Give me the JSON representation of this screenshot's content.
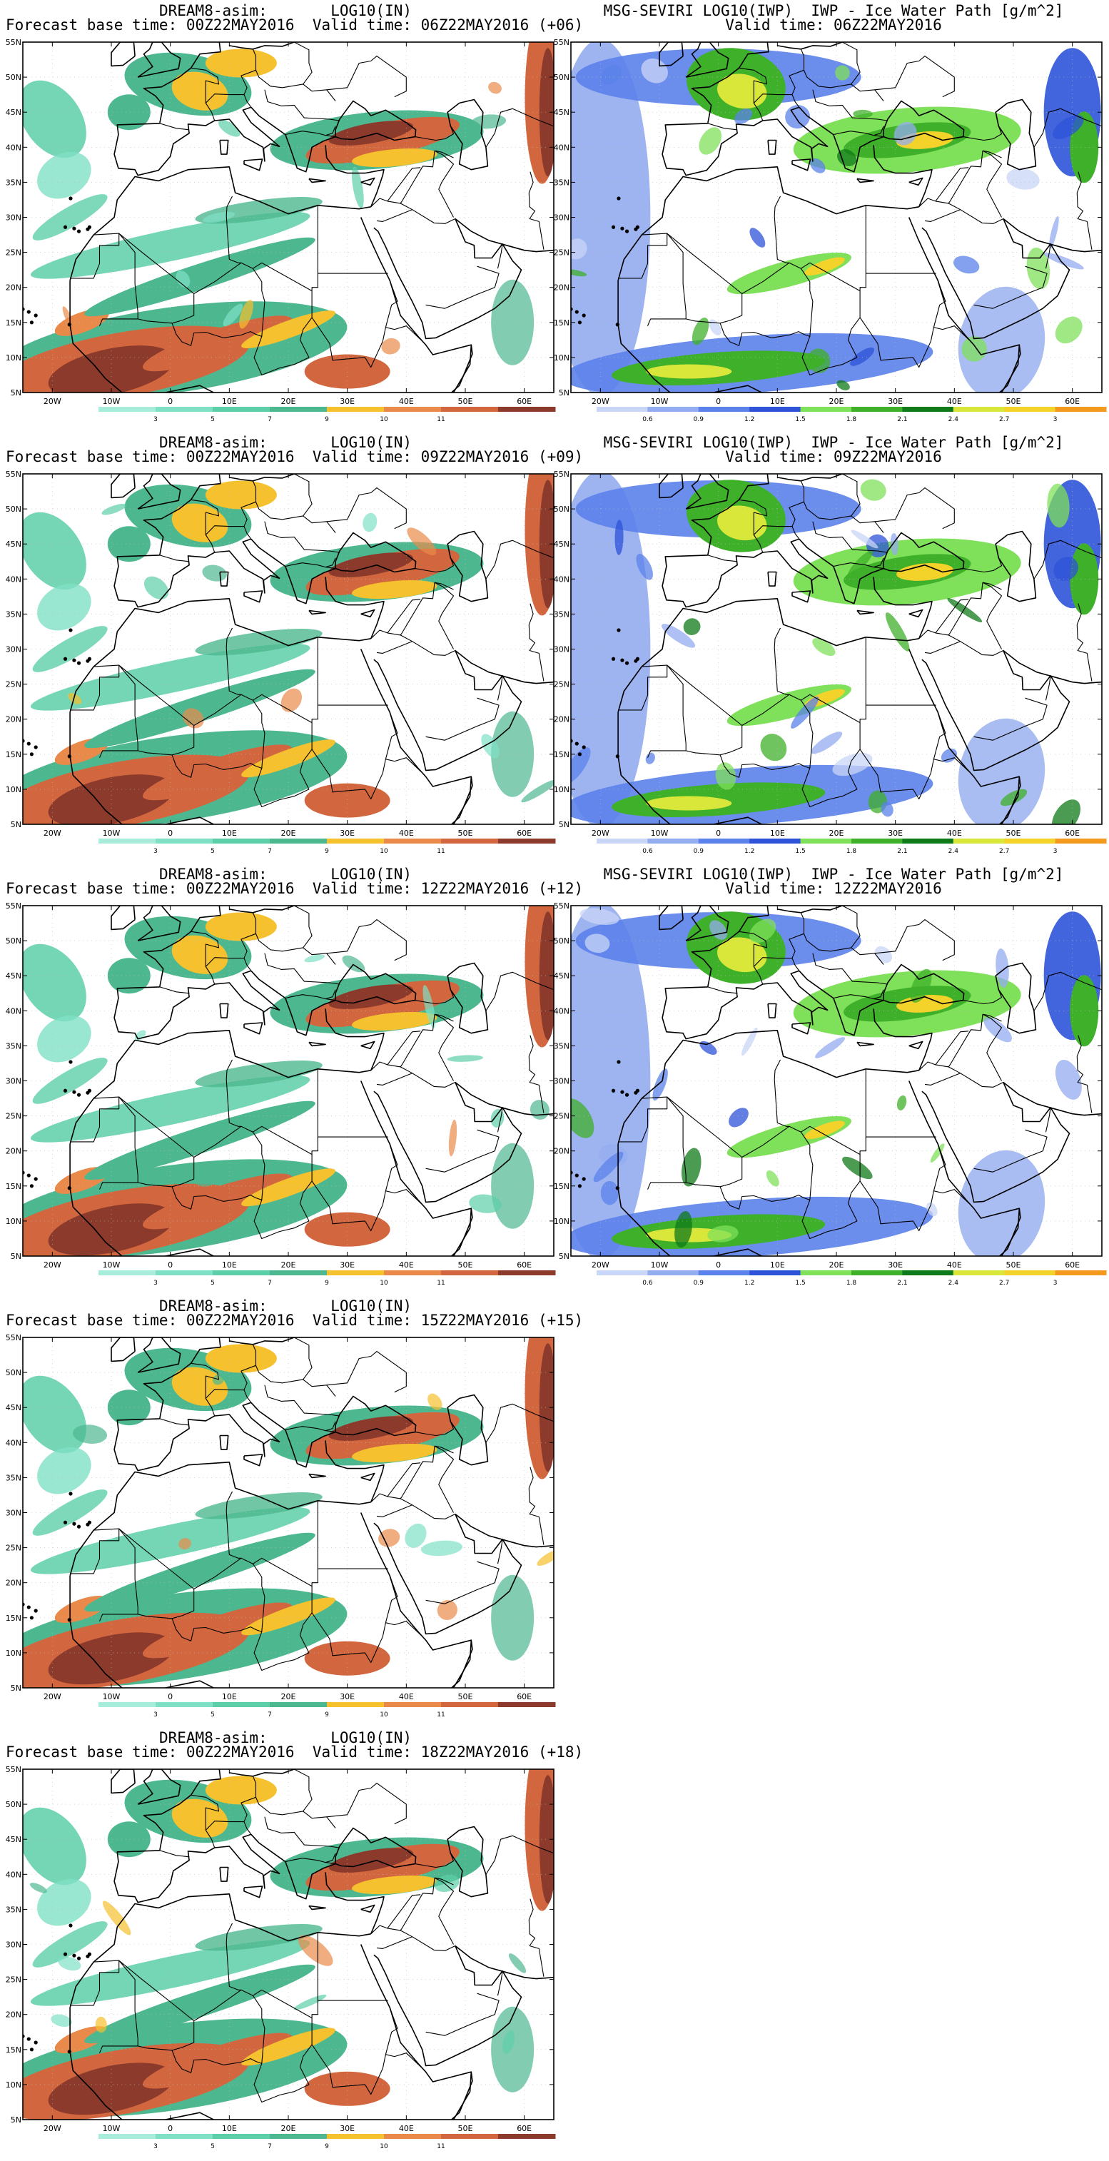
{
  "map_axes": {
    "lat_labels": [
      "55N",
      "50N",
      "45N",
      "40N",
      "35N",
      "30N",
      "25N",
      "20N",
      "15N",
      "10N",
      "5N"
    ],
    "lon_labels": [
      "20W",
      "10W",
      "0",
      "10E",
      "20E",
      "30E",
      "40E",
      "50E",
      "60E"
    ]
  },
  "dream_colorbar": {
    "labels": [
      "3",
      "5",
      "7",
      "9",
      "10",
      "11"
    ],
    "colors": [
      "#a8ecdc",
      "#7fe0c6",
      "#5ccfa8",
      "#4db890",
      "#f5c12e",
      "#e98a4a",
      "#d2673f",
      "#8b3a2c"
    ]
  },
  "msg_colorbar": {
    "labels": [
      "0.6",
      "0.9",
      "1.2",
      "1.5",
      "1.8",
      "2.1",
      "2.4",
      "2.7",
      "3"
    ],
    "colors": [
      "#c9d6f7",
      "#94acf0",
      "#5b81ea",
      "#2e53d8",
      "#7fe05a",
      "#3fb02a",
      "#0f7a1a",
      "#d9e63a",
      "#f3d22a",
      "#f39a1e"
    ]
  },
  "panels": [
    {
      "id": "dream-06",
      "model": "DREAM8-asim:",
      "var": "LOG10(IN)",
      "line2": "Forecast base time: 00Z22MAY2016  Valid time: 06Z22MAY2016 (+06)",
      "kind": "dream"
    },
    {
      "id": "msg-06",
      "model": "MSG-SEVIRI LOG10(IWP)",
      "var": "IWP - Ice Water Path [g/m^2]",
      "line2": "Valid time: 06Z22MAY2016",
      "kind": "msg"
    },
    {
      "id": "dream-09",
      "model": "DREAM8-asim:",
      "var": "LOG10(IN)",
      "line2": "Forecast base time: 00Z22MAY2016  Valid time: 09Z22MAY2016 (+09)",
      "kind": "dream"
    },
    {
      "id": "msg-09",
      "model": "MSG-SEVIRI LOG10(IWP)",
      "var": "IWP - Ice Water Path [g/m^2]",
      "line2": "Valid time: 09Z22MAY2016",
      "kind": "msg"
    },
    {
      "id": "dream-12",
      "model": "DREAM8-asim:",
      "var": "LOG10(IN)",
      "line2": "Forecast base time: 00Z22MAY2016  Valid time: 12Z22MAY2016 (+12)",
      "kind": "dream"
    },
    {
      "id": "msg-12",
      "model": "MSG-SEVIRI LOG10(IWP)",
      "var": "IWP - Ice Water Path [g/m^2]",
      "line2": "Valid time: 12Z22MAY2016",
      "kind": "msg"
    },
    {
      "id": "dream-15",
      "model": "DREAM8-asim:",
      "var": "LOG10(IN)",
      "line2": "Forecast base time: 00Z22MAY2016  Valid time: 15Z22MAY2016 (+15)",
      "kind": "dream"
    },
    {
      "id": "dream-18",
      "model": "DREAM8-asim:",
      "var": "LOG10(IN)",
      "line2": "Forecast base time: 00Z22MAY2016  Valid time: 18Z22MAY2016 (+18)",
      "kind": "dream"
    }
  ]
}
